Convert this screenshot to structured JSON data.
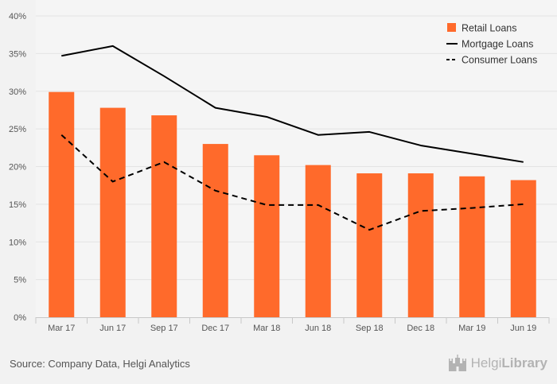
{
  "chart_data": {
    "type": "bar",
    "categories": [
      "Mar 17",
      "Jun 17",
      "Sep 17",
      "Dec 17",
      "Mar 18",
      "Jun 18",
      "Sep 18",
      "Dec 18",
      "Mar 19",
      "Jun 19"
    ],
    "y_ticks": [
      "0%",
      "5%",
      "10%",
      "15%",
      "20%",
      "25%",
      "30%",
      "35%",
      "40%"
    ],
    "ylim": [
      0,
      40
    ],
    "grid": true,
    "legend_position": "top-right",
    "series": [
      {
        "name": "Retail Loans",
        "kind": "bar",
        "color": "#ff6a2b",
        "values": [
          29.9,
          27.8,
          26.8,
          23.0,
          21.5,
          20.2,
          19.1,
          19.1,
          18.7,
          18.2
        ]
      },
      {
        "name": "Mortgage Loans",
        "kind": "line",
        "style": "solid",
        "color": "#000000",
        "values": [
          34.7,
          36.0,
          32.0,
          27.8,
          26.6,
          24.2,
          24.6,
          22.8,
          21.7,
          20.6
        ]
      },
      {
        "name": "Consumer Loans",
        "kind": "line",
        "style": "dashed",
        "color": "#000000",
        "values": [
          24.2,
          18.0,
          20.6,
          16.8,
          14.9,
          14.9,
          11.6,
          14.1,
          14.5,
          15.0
        ]
      }
    ]
  },
  "footer": {
    "source": "Source: Company Data, Helgi Analytics",
    "brand_part1": "Helgi",
    "brand_part2": "Library",
    "logo_icon": "castle-icon"
  }
}
